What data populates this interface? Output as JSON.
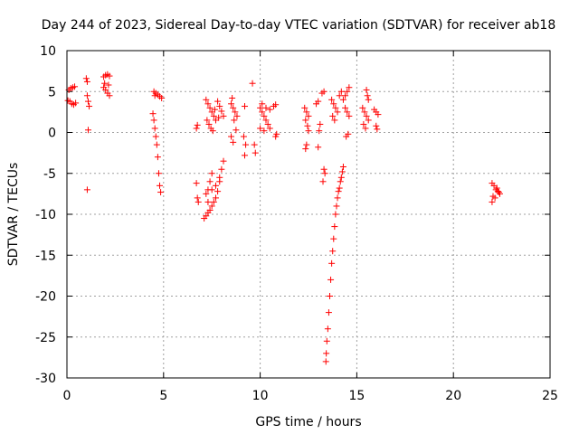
{
  "chart_data": {
    "type": "scatter",
    "title": "Day 244 of 2023, Sidereal Day-to-day VTEC variation (SDTVAR) for receiver ab18",
    "xlabel": "GPS time / hours",
    "ylabel": "SDTVAR / TECUs",
    "xlim": [
      0,
      25
    ],
    "ylim": [
      -30,
      10
    ],
    "xticks": [
      0,
      5,
      10,
      15,
      20,
      25
    ],
    "yticks": [
      10,
      5,
      0,
      -5,
      -10,
      -15,
      -20,
      -25,
      -30
    ],
    "xtick_labels": [
      "0",
      "5",
      "10",
      "15",
      "20",
      "25"
    ],
    "ytick_labels": [
      "10",
      "5",
      "0",
      "-5",
      "-10",
      "-15",
      "-20",
      "-25",
      "-30"
    ],
    "grid": true,
    "marker": "+",
    "color": "#ff0000",
    "series": [
      {
        "name": "SDTVAR",
        "points": [
          [
            0.1,
            5.2
          ],
          [
            0.2,
            5.4
          ],
          [
            0.3,
            5.5
          ],
          [
            0.4,
            5.6
          ],
          [
            0.15,
            3.8
          ],
          [
            0.25,
            3.5
          ],
          [
            0.35,
            3.4
          ],
          [
            0.45,
            3.6
          ],
          [
            0.05,
            3.9
          ],
          [
            1.0,
            6.6
          ],
          [
            1.05,
            6.2
          ],
          [
            1.1,
            3.8
          ],
          [
            1.15,
            3.2
          ],
          [
            1.05,
            4.5
          ],
          [
            1.1,
            0.3
          ],
          [
            1.05,
            -7.0
          ],
          [
            1.9,
            6.8
          ],
          [
            2.0,
            7.0
          ],
          [
            2.1,
            7.1
          ],
          [
            2.2,
            6.9
          ],
          [
            1.9,
            5.5
          ],
          [
            2.0,
            5.2
          ],
          [
            2.1,
            4.8
          ],
          [
            2.2,
            4.5
          ],
          [
            1.95,
            6.0
          ],
          [
            2.15,
            5.8
          ],
          [
            4.5,
            5.0
          ],
          [
            4.6,
            4.8
          ],
          [
            4.7,
            4.6
          ],
          [
            4.8,
            4.4
          ],
          [
            4.9,
            4.2
          ],
          [
            4.55,
            4.5
          ],
          [
            4.45,
            2.3
          ],
          [
            4.5,
            1.5
          ],
          [
            4.55,
            0.5
          ],
          [
            4.6,
            -0.5
          ],
          [
            4.65,
            -1.5
          ],
          [
            4.7,
            -3.0
          ],
          [
            4.75,
            -5.0
          ],
          [
            4.8,
            -6.5
          ],
          [
            4.85,
            -7.3
          ],
          [
            6.7,
            -6.2
          ],
          [
            6.75,
            -8.0
          ],
          [
            6.8,
            -8.5
          ],
          [
            6.7,
            0.5
          ],
          [
            6.75,
            0.9
          ],
          [
            7.1,
            -10.5
          ],
          [
            7.2,
            -10.2
          ],
          [
            7.3,
            -9.8
          ],
          [
            7.4,
            -9.5
          ],
          [
            7.5,
            -9.0
          ],
          [
            7.6,
            -8.5
          ],
          [
            7.7,
            -8.0
          ],
          [
            7.8,
            -7.2
          ],
          [
            7.9,
            -6.0
          ],
          [
            8.0,
            -4.5
          ],
          [
            8.1,
            -3.5
          ],
          [
            7.2,
            -7.5
          ],
          [
            7.3,
            -7.0
          ],
          [
            7.4,
            -6.0
          ],
          [
            7.5,
            -5.0
          ],
          [
            7.3,
            -8.5
          ],
          [
            7.5,
            -7.0
          ],
          [
            7.7,
            -6.5
          ],
          [
            7.9,
            -5.5
          ],
          [
            7.2,
            4.0
          ],
          [
            7.3,
            3.5
          ],
          [
            7.4,
            3.0
          ],
          [
            7.5,
            2.5
          ],
          [
            7.6,
            2.0
          ],
          [
            7.7,
            1.5
          ],
          [
            7.8,
            3.8
          ],
          [
            7.9,
            3.2
          ],
          [
            8.0,
            2.6
          ],
          [
            8.1,
            2.0
          ],
          [
            7.25,
            1.5
          ],
          [
            7.35,
            1.0
          ],
          [
            7.45,
            0.5
          ],
          [
            7.55,
            0.2
          ],
          [
            7.65,
            2.8
          ],
          [
            7.85,
            1.8
          ],
          [
            8.5,
            3.5
          ],
          [
            8.6,
            3.0
          ],
          [
            8.7,
            2.5
          ],
          [
            8.8,
            2.0
          ],
          [
            8.55,
            4.2
          ],
          [
            8.65,
            1.5
          ],
          [
            8.75,
            0.3
          ],
          [
            8.5,
            -0.5
          ],
          [
            8.6,
            -1.2
          ],
          [
            9.2,
            3.2
          ],
          [
            9.25,
            -1.5
          ],
          [
            9.2,
            -2.8
          ],
          [
            9.15,
            -0.5
          ],
          [
            9.6,
            6.0
          ],
          [
            9.7,
            -1.5
          ],
          [
            9.75,
            -2.5
          ],
          [
            10.0,
            3.0
          ],
          [
            10.1,
            2.5
          ],
          [
            10.2,
            2.0
          ],
          [
            10.3,
            1.5
          ],
          [
            10.4,
            1.0
          ],
          [
            10.5,
            0.5
          ],
          [
            10.1,
            3.5
          ],
          [
            10.3,
            3.0
          ],
          [
            10.5,
            2.8
          ],
          [
            10.7,
            3.2
          ],
          [
            10.8,
            3.4
          ],
          [
            10.85,
            -0.2
          ],
          [
            10.8,
            -0.5
          ],
          [
            10.2,
            0.2
          ],
          [
            10.0,
            0.5
          ],
          [
            12.3,
            3.0
          ],
          [
            12.4,
            2.5
          ],
          [
            12.5,
            2.0
          ],
          [
            12.35,
            1.5
          ],
          [
            12.45,
            0.8
          ],
          [
            12.5,
            0.2
          ],
          [
            12.4,
            -1.5
          ],
          [
            12.35,
            -2.0
          ],
          [
            12.9,
            3.5
          ],
          [
            13.0,
            3.8
          ],
          [
            13.2,
            4.8
          ],
          [
            13.3,
            5.0
          ],
          [
            13.1,
            1.0
          ],
          [
            13.05,
            0.2
          ],
          [
            13.0,
            -1.8
          ],
          [
            13.3,
            -4.5
          ],
          [
            13.25,
            -6.0
          ],
          [
            13.35,
            -5.0
          ],
          [
            13.4,
            -28.0
          ],
          [
            13.42,
            -27.0
          ],
          [
            13.45,
            -25.5
          ],
          [
            13.5,
            -24.0
          ],
          [
            13.55,
            -22.0
          ],
          [
            13.6,
            -20.0
          ],
          [
            13.65,
            -18.0
          ],
          [
            13.7,
            -16.0
          ],
          [
            13.75,
            -14.5
          ],
          [
            13.8,
            -13.0
          ],
          [
            13.85,
            -11.5
          ],
          [
            13.9,
            -10.0
          ],
          [
            13.95,
            -9.0
          ],
          [
            14.0,
            -8.0
          ],
          [
            14.05,
            -7.2
          ],
          [
            14.1,
            -6.8
          ],
          [
            14.15,
            -6.0
          ],
          [
            14.2,
            -5.5
          ],
          [
            14.25,
            -4.8
          ],
          [
            14.3,
            -4.2
          ],
          [
            13.7,
            4.0
          ],
          [
            13.8,
            3.5
          ],
          [
            13.9,
            3.0
          ],
          [
            14.0,
            2.5
          ],
          [
            14.1,
            4.5
          ],
          [
            14.2,
            5.0
          ],
          [
            13.75,
            2.0
          ],
          [
            13.85,
            1.5
          ],
          [
            14.3,
            4.0
          ],
          [
            14.4,
            4.5
          ],
          [
            14.5,
            5.0
          ],
          [
            14.6,
            5.5
          ],
          [
            14.4,
            3.0
          ],
          [
            14.5,
            2.5
          ],
          [
            14.6,
            2.0
          ],
          [
            14.45,
            -0.5
          ],
          [
            14.55,
            -0.2
          ],
          [
            15.3,
            3.0
          ],
          [
            15.4,
            2.5
          ],
          [
            15.5,
            2.0
          ],
          [
            15.6,
            1.5
          ],
          [
            15.35,
            1.0
          ],
          [
            15.45,
            0.5
          ],
          [
            15.5,
            5.2
          ],
          [
            15.55,
            4.5
          ],
          [
            15.6,
            4.0
          ],
          [
            15.9,
            2.8
          ],
          [
            16.0,
            2.5
          ],
          [
            16.1,
            2.2
          ],
          [
            16.0,
            0.8
          ],
          [
            16.05,
            0.4
          ],
          [
            22.0,
            -6.2
          ],
          [
            22.1,
            -6.5
          ],
          [
            22.2,
            -7.0
          ],
          [
            22.3,
            -7.2
          ],
          [
            22.4,
            -7.5
          ],
          [
            22.05,
            -7.8
          ],
          [
            22.15,
            -8.0
          ],
          [
            22.0,
            -8.5
          ],
          [
            22.25,
            -6.8
          ],
          [
            22.35,
            -7.3
          ]
        ]
      }
    ]
  }
}
